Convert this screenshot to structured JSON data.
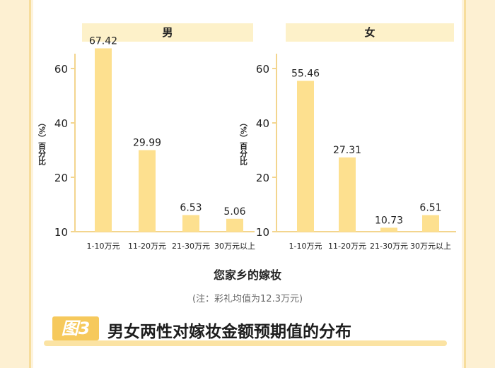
{
  "chart_data": [
    {
      "type": "bar",
      "title": "男",
      "ylabel": "（%）百分比",
      "categories": [
        "1-10万元",
        "11-20万元",
        "21-30万元",
        "30万元以上"
      ],
      "values": [
        67.42,
        29.99,
        6.53,
        5.06
      ],
      "data_labels": [
        "67.42",
        "29.99",
        "6.53",
        "5.06"
      ],
      "yticks": [
        10,
        20,
        40,
        60
      ],
      "color": "#fde08f"
    },
    {
      "type": "bar",
      "title": "女",
      "ylabel": "（%）百分比",
      "categories": [
        "1-10万元",
        "11-20万元",
        "21-30万元",
        "30万元以上"
      ],
      "values": [
        55.46,
        27.31,
        10.73,
        6.51
      ],
      "data_labels": [
        "55.46",
        "27.31",
        "10.73",
        "6.51"
      ],
      "yticks": [
        10,
        20,
        40,
        60
      ],
      "color": "#fde08f"
    }
  ],
  "xcaption": "您家乡的嫁妆",
  "note": "(注：彩礼均值为12.3万元)",
  "figure": {
    "badge": "图3",
    "title": "男女两性对嫁妆金额预期值的分布"
  },
  "colors": {
    "bar": "#fde08f",
    "header_bg": "#fdf1c9",
    "axis": "#f3d58e",
    "badge": "#f6c95c",
    "page_bg": "#fdf3dc"
  }
}
